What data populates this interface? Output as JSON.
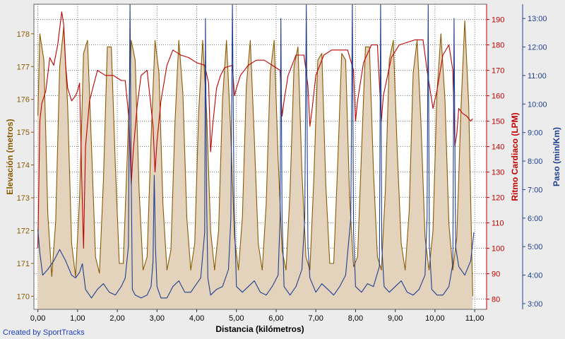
{
  "credit": "Created by SportTracks",
  "chart_data": {
    "type": "line",
    "xlabel": "Distancia (kilómetros)",
    "xlim": [
      -0.1,
      11.3
    ],
    "x_ticks": [
      "0,00",
      "1,00",
      "2,00",
      "3,00",
      "4,00",
      "5,00",
      "6,00",
      "7,00",
      "8,00",
      "9,00",
      "10,00",
      "11,00"
    ],
    "grid": true,
    "axes": {
      "elevation": {
        "label": "Elevación (metros)",
        "range": [
          169.6,
          178.9
        ],
        "ticks": [
          "170",
          "171",
          "172",
          "173",
          "174",
          "175",
          "176",
          "177",
          "178"
        ],
        "color": "#8a5a00"
      },
      "heart_rate": {
        "label": "Ritmo Cardiaco (LPM)",
        "range": [
          76,
          196
        ],
        "ticks": [
          "80",
          "90",
          "100",
          "110",
          "120",
          "130",
          "140",
          "150",
          "160",
          "170",
          "180",
          "190"
        ],
        "color": "#c00000"
      },
      "pace": {
        "label": "Paso (min/Km)",
        "range": [
          2.8,
          13.5
        ],
        "ticks": [
          "3:00",
          "4:00",
          "5:00",
          "6:00",
          "7:00",
          "8:00",
          "9:00",
          "10:00",
          "11:00",
          "12:00",
          "13:00"
        ],
        "color": "#1f3f8f"
      }
    },
    "series": [
      {
        "key": "elevation",
        "type": "area",
        "color": "#8a5a00",
        "fill": "#e3d3bd",
        "x": [
          0.0,
          0.05,
          0.15,
          0.25,
          0.35,
          0.45,
          0.55,
          0.65,
          0.75,
          0.85,
          0.95,
          1.05,
          1.15,
          1.25,
          1.35,
          1.45,
          1.55,
          1.65,
          1.75,
          1.85,
          1.95,
          2.05,
          2.15,
          2.25,
          2.35,
          2.45,
          2.55,
          2.65,
          2.75,
          2.85,
          2.95,
          3.05,
          3.15,
          3.25,
          3.35,
          3.45,
          3.55,
          3.65,
          3.75,
          3.85,
          3.95,
          4.05,
          4.15,
          4.25,
          4.35,
          4.45,
          4.55,
          4.65,
          4.75,
          4.85,
          4.95,
          5.05,
          5.15,
          5.25,
          5.35,
          5.45,
          5.55,
          5.65,
          5.75,
          5.85,
          5.95,
          6.05,
          6.15,
          6.25,
          6.35,
          6.45,
          6.55,
          6.65,
          6.75,
          6.85,
          6.95,
          7.05,
          7.15,
          7.25,
          7.35,
          7.45,
          7.55,
          7.65,
          7.75,
          7.85,
          7.95,
          8.05,
          8.15,
          8.25,
          8.35,
          8.45,
          8.55,
          8.65,
          8.75,
          8.85,
          8.95,
          9.05,
          9.15,
          9.25,
          9.35,
          9.45,
          9.55,
          9.65,
          9.75,
          9.85,
          9.95,
          10.05,
          10.15,
          10.25,
          10.35,
          10.45,
          10.55,
          10.65,
          10.75,
          10.85,
          10.95
        ],
        "values": [
          175.5,
          178.0,
          177.2,
          172.5,
          170.6,
          172.3,
          177.0,
          178.2,
          175.8,
          171.6,
          170.6,
          173.0,
          177.4,
          177.8,
          174.6,
          171.2,
          170.7,
          173.5,
          177.6,
          177.6,
          174.0,
          171.0,
          171.0,
          174.2,
          177.8,
          177.2,
          173.2,
          170.8,
          171.2,
          174.8,
          177.8,
          176.8,
          172.8,
          170.8,
          171.4,
          175.2,
          177.8,
          176.2,
          172.4,
          170.8,
          171.6,
          175.6,
          177.8,
          175.6,
          172.0,
          170.8,
          172.0,
          176.0,
          177.8,
          175.2,
          171.8,
          170.8,
          172.4,
          176.4,
          177.8,
          174.8,
          171.6,
          170.8,
          172.8,
          176.8,
          177.8,
          174.2,
          171.4,
          170.8,
          173.2,
          177.0,
          177.6,
          173.8,
          171.2,
          170.8,
          173.6,
          177.2,
          177.4,
          173.4,
          171.0,
          171.0,
          174.0,
          177.4,
          177.2,
          173.0,
          170.9,
          171.2,
          174.4,
          177.6,
          177.6,
          173.8,
          171.2,
          170.8,
          173.2,
          177.2,
          177.8,
          174.4,
          171.6,
          170.8,
          172.6,
          176.8,
          177.8,
          175.2,
          171.8,
          170.8,
          172.0,
          176.2,
          178.0,
          176.0,
          172.2,
          170.8,
          171.8,
          175.6,
          178.4,
          175.8,
          170.0
        ]
      },
      {
        "key": "heart_rate",
        "type": "line",
        "color": "#c00000",
        "x": [
          0.0,
          0.05,
          0.1,
          0.2,
          0.3,
          0.4,
          0.5,
          0.6,
          0.65,
          0.7,
          0.75,
          0.85,
          0.95,
          1.0,
          1.05,
          1.1,
          1.15,
          1.2,
          1.3,
          1.5,
          1.7,
          1.9,
          2.1,
          2.2,
          2.3,
          2.35,
          2.4,
          2.5,
          2.6,
          2.75,
          2.9,
          2.95,
          3.0,
          3.1,
          3.25,
          3.4,
          3.6,
          3.8,
          4.0,
          4.2,
          4.3,
          4.35,
          4.4,
          4.5,
          4.6,
          4.7,
          4.9,
          4.95,
          5.0,
          5.1,
          5.3,
          5.5,
          5.7,
          5.9,
          6.1,
          6.15,
          6.2,
          6.3,
          6.5,
          6.7,
          6.8,
          6.85,
          6.9,
          7.0,
          7.2,
          7.4,
          7.6,
          7.8,
          7.95,
          8.0,
          8.05,
          8.2,
          8.4,
          8.55,
          8.6,
          8.65,
          8.7,
          8.9,
          9.1,
          9.3,
          9.5,
          9.7,
          9.8,
          9.9,
          9.95,
          10.05,
          10.2,
          10.35,
          10.45,
          10.5,
          10.55,
          10.6,
          10.7,
          10.8,
          10.9,
          10.95
        ],
        "values": [
          100,
          150,
          157,
          162,
          175,
          172,
          180,
          193,
          188,
          172,
          163,
          158,
          160,
          162,
          165,
          130,
          100,
          140,
          158,
          170,
          168,
          168,
          166,
          166,
          150,
          125,
          138,
          156,
          168,
          170,
          148,
          130,
          142,
          158,
          172,
          178,
          176,
          175,
          173,
          172,
          165,
          138,
          148,
          163,
          168,
          171,
          172,
          160,
          163,
          168,
          172,
          174,
          174,
          172,
          170,
          152,
          158,
          168,
          176,
          176,
          164,
          148,
          154,
          168,
          176,
          178,
          178,
          178,
          170,
          150,
          158,
          173,
          180,
          180,
          165,
          150,
          160,
          175,
          180,
          181,
          182,
          182,
          170,
          160,
          155,
          162,
          176,
          180,
          170,
          140,
          145,
          155,
          153,
          152,
          150,
          151
        ]
      },
      {
        "key": "pace",
        "type": "line",
        "color": "#1f3f8f",
        "x": [
          0.0,
          0.05,
          0.12,
          0.25,
          0.4,
          0.55,
          0.7,
          0.85,
          0.95,
          1.05,
          1.12,
          1.2,
          1.35,
          1.5,
          1.65,
          1.8,
          1.95,
          2.1,
          2.2,
          2.28,
          2.32,
          2.35,
          2.38,
          2.45,
          2.6,
          2.75,
          2.85,
          2.9,
          2.93,
          2.96,
          3.0,
          3.1,
          3.25,
          3.4,
          3.55,
          3.7,
          3.85,
          4.0,
          4.1,
          4.2,
          4.22,
          4.25,
          4.28,
          4.35,
          4.5,
          4.65,
          4.8,
          4.86,
          4.9,
          4.94,
          5.0,
          5.15,
          5.3,
          5.45,
          5.6,
          5.75,
          5.9,
          6.05,
          6.1,
          6.12,
          6.15,
          6.2,
          6.35,
          6.5,
          6.65,
          6.72,
          6.76,
          6.8,
          6.85,
          7.0,
          7.15,
          7.3,
          7.45,
          7.6,
          7.75,
          7.88,
          7.92,
          7.95,
          8.0,
          8.15,
          8.3,
          8.45,
          8.6,
          8.63,
          8.66,
          8.72,
          8.85,
          9.0,
          9.15,
          9.3,
          9.45,
          9.6,
          9.75,
          9.8,
          9.83,
          9.86,
          9.92,
          10.05,
          10.2,
          10.35,
          10.45,
          10.48,
          10.52,
          10.6,
          10.75,
          10.9,
          10.98
        ],
        "values": [
          5.6,
          4.8,
          4.0,
          4.2,
          4.5,
          4.9,
          4.5,
          4.0,
          3.9,
          4.1,
          4.4,
          3.5,
          3.2,
          3.5,
          3.7,
          3.4,
          3.3,
          3.6,
          3.9,
          5.0,
          13.5,
          7.5,
          3.5,
          3.3,
          3.2,
          3.3,
          3.6,
          4.5,
          7.5,
          5.0,
          3.6,
          3.2,
          3.2,
          3.6,
          3.8,
          3.4,
          3.4,
          3.7,
          3.9,
          5.5,
          13.0,
          6.5,
          3.9,
          3.3,
          3.5,
          3.6,
          4.2,
          6.0,
          13.5,
          6.5,
          3.6,
          3.4,
          3.6,
          3.8,
          3.4,
          3.3,
          3.6,
          4.0,
          6.0,
          13.0,
          6.0,
          3.6,
          3.3,
          3.6,
          4.2,
          6.0,
          13.5,
          5.0,
          3.9,
          3.4,
          3.7,
          3.5,
          3.3,
          3.6,
          4.0,
          6.0,
          13.5,
          5.5,
          3.6,
          3.4,
          3.7,
          3.6,
          4.3,
          13.5,
          5.0,
          3.6,
          3.4,
          3.6,
          3.8,
          3.4,
          3.3,
          3.5,
          4.0,
          6.0,
          13.5,
          5.0,
          3.5,
          3.3,
          3.3,
          3.6,
          4.4,
          13.0,
          5.0,
          4.3,
          4.0,
          4.5,
          5.5
        ]
      }
    ]
  }
}
